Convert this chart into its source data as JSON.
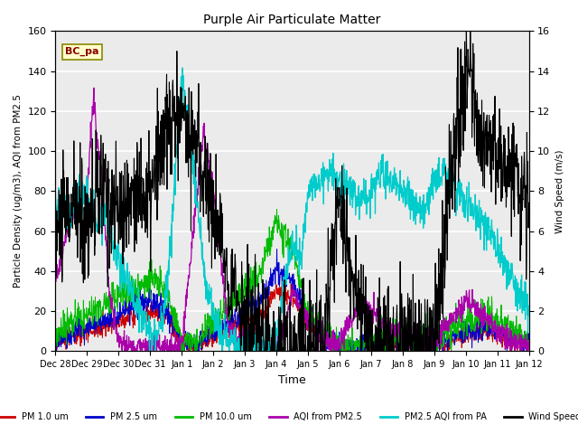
{
  "title": "Purple Air Particulate Matter",
  "xlabel": "Time",
  "ylabel_left": "Particle Density (ug/m3), AQI from PM2.5",
  "ylabel_right": "Wind Speed (m/s)",
  "ylim_left": [
    0,
    160
  ],
  "ylim_right": [
    0,
    16
  ],
  "legend_labels": [
    "PM 1.0 um",
    "PM 2.5 um",
    "PM 10.0 um",
    "AQI from PM2.5",
    "PM2.5 AQI from PA",
    "Wind Speed"
  ],
  "legend_colors": [
    "#cc0000",
    "#0000cc",
    "#00bb00",
    "#aa00aa",
    "#00cccc",
    "#000000"
  ],
  "annotation_text": "BC_pa",
  "annotation_color": "#880000",
  "annotation_bg": "#ffffcc",
  "annotation_border": "#888800",
  "tick_labels": [
    "Dec 28",
    "Dec 29",
    "Dec 30",
    "Dec 31",
    "Jan 1",
    "Jan 2",
    "Jan 3",
    "Jan 4",
    "Jan 5",
    "Jan 6",
    "Jan 7",
    "Jan 8",
    "Jan 9",
    "Jan 10",
    "Jan 11",
    "Jan 12"
  ],
  "yticks_left": [
    0,
    20,
    40,
    60,
    80,
    100,
    120,
    140,
    160
  ],
  "yticks_right": [
    0,
    2,
    4,
    6,
    8,
    10,
    12,
    14,
    16
  ],
  "figsize": [
    6.4,
    4.8
  ],
  "dpi": 100
}
